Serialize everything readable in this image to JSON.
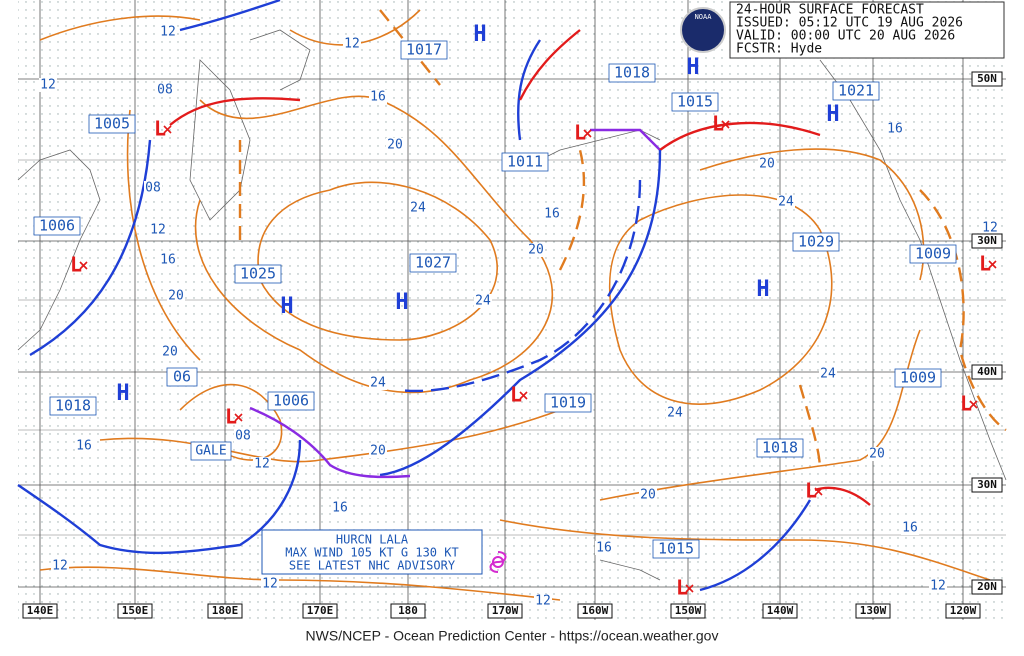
{
  "header": {
    "lines": [
      "24-HOUR SURFACE FORECAST",
      "ISSUED: 05:12 UTC 19 AUG 2026",
      "VALID:  00:00 UTC 20 AUG 2026",
      "FCSTR:  Hyde"
    ],
    "logo": "NOAA"
  },
  "symbols": {
    "high": "H",
    "low": "L"
  },
  "pressure_labels": [
    "1017",
    "1018",
    "1015",
    "1021",
    "1005",
    "1011",
    "1006",
    "1025",
    "1027",
    "1029",
    "1009",
    "1009",
    "1006",
    "06",
    "1018",
    "1019",
    "1018",
    "1015"
  ],
  "isobar_labels": [
    "12",
    "12",
    "12",
    "08",
    "16",
    "20",
    "08",
    "12",
    "16",
    "24",
    "16",
    "20",
    "20",
    "24",
    "20",
    "24",
    "16",
    "08",
    "12",
    "20",
    "24",
    "24",
    "16",
    "20",
    "12",
    "24",
    "20",
    "20",
    "16",
    "16",
    "16",
    "12",
    "12",
    "12",
    "12"
  ],
  "latitude_labels": [
    "50N",
    "30N",
    "40N",
    "30N",
    "20N"
  ],
  "longitude_labels": [
    "140E",
    "150E",
    "180E",
    "170E",
    "180",
    "170W",
    "160W",
    "150W",
    "140W",
    "130W",
    "120W"
  ],
  "gale": "GALE",
  "hurricane": [
    "HURCN LALA",
    "MAX WIND 105 KT G 130 KT",
    "SEE LATEST NHC ADVISORY"
  ],
  "footer": "NWS/NCEP - Ocean Prediction Center - https://ocean.weather.gov"
}
